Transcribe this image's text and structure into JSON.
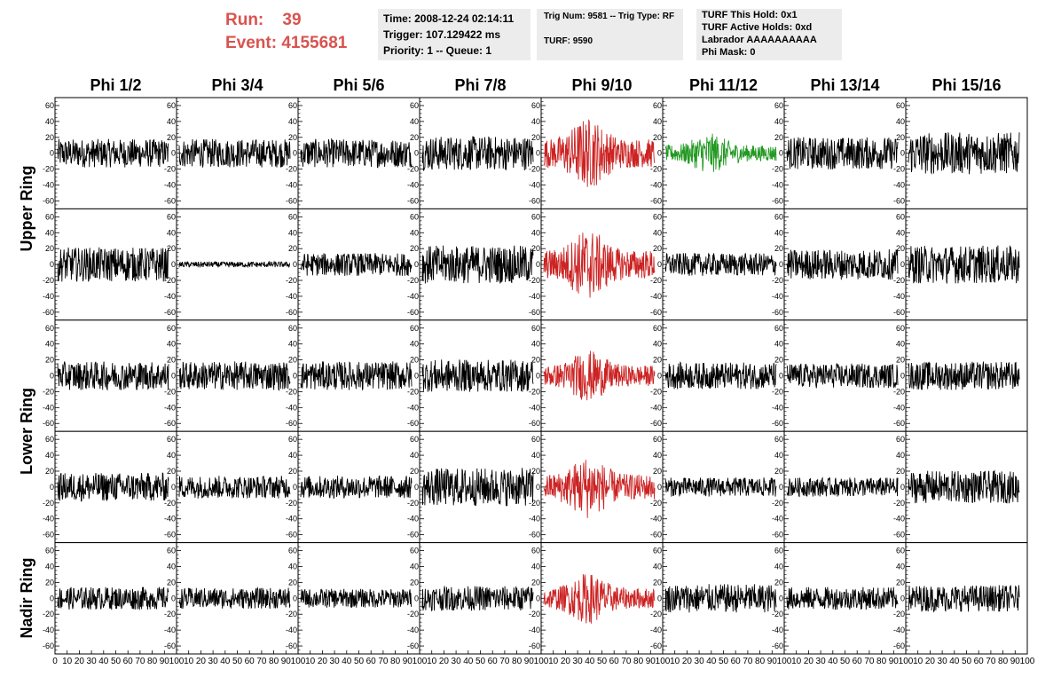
{
  "header": {
    "run_label": "Run:",
    "run_value": "39",
    "event_label": "Event:",
    "event_value": "4155681"
  },
  "info_time": {
    "time": "Time: 2008-12-24 02:14:11",
    "trigger": "Trigger: 107.129422 ms",
    "priority": "Priority: 1 -- Queue: 1"
  },
  "info_trig": {
    "trig": "Trig Num: 9581 -- Trig Type: RF",
    "turf": "TURF: 9590"
  },
  "info_turf": {
    "hold": "TURF This Hold: 0x1",
    "active": "TURF Active Holds: 0xd",
    "labrador": "Labrador AAAAAAAAAA",
    "phimask": "Phi Mask: 0"
  },
  "chart_data": {
    "type": "line",
    "columns": [
      "Phi 1/2",
      "Phi 3/4",
      "Phi 5/6",
      "Phi 7/8",
      "Phi 9/10",
      "Phi 11/12",
      "Phi 13/14",
      "Phi 15/16"
    ],
    "rows": [
      "Upper Ring",
      "Upper Ring",
      "Lower Ring",
      "Lower Ring",
      "Nadir Ring"
    ],
    "row_labels": [
      "Upper Ring",
      "Lower Ring",
      "Nadir Ring"
    ],
    "ylim": [
      -70,
      70
    ],
    "y_ticks": [
      -60,
      -40,
      -20,
      0,
      20,
      40,
      60
    ],
    "xlim": [
      0,
      100
    ],
    "x_tick_labels": [
      "0",
      "10",
      "20",
      "30",
      "40",
      "50",
      "60",
      "70",
      "80",
      "90",
      "100"
    ],
    "colors": {
      "default": "#000000",
      "triggered": "#cc2222",
      "trigger_source": "#229922"
    },
    "panel_colors": [
      [
        "default",
        "default",
        "default",
        "default",
        "triggered",
        "trigger_source",
        "default",
        "default"
      ],
      [
        "default",
        "default",
        "default",
        "default",
        "triggered",
        "default",
        "default",
        "default"
      ],
      [
        "default",
        "default",
        "default",
        "default",
        "triggered",
        "default",
        "default",
        "default"
      ],
      [
        "default",
        "default",
        "default",
        "default",
        "triggered",
        "default",
        "default",
        "default"
      ],
      [
        "default",
        "default",
        "default",
        "default",
        "triggered",
        "default",
        "default",
        "default"
      ]
    ],
    "panel_amplitude": [
      [
        15,
        15,
        15,
        18,
        25,
        14,
        17,
        22
      ],
      [
        18,
        3,
        12,
        20,
        25,
        12,
        16,
        20
      ],
      [
        15,
        15,
        15,
        17,
        18,
        14,
        13,
        15
      ],
      [
        15,
        12,
        12,
        20,
        22,
        10,
        10,
        17
      ],
      [
        12,
        11,
        10,
        13,
        18,
        15,
        12,
        14
      ]
    ]
  }
}
